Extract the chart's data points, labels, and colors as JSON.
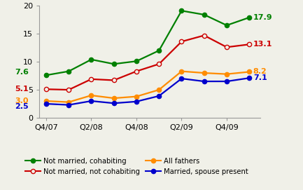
{
  "x_tick_labels": [
    "Q4/07",
    "Q2/08",
    "Q4/08",
    "Q2/09",
    "Q4/09"
  ],
  "x_tick_positions": [
    0,
    2,
    4,
    6,
    8
  ],
  "series": [
    {
      "key": "not_married_cohabiting",
      "values": [
        7.6,
        8.3,
        10.4,
        9.6,
        10.1,
        12.0,
        19.1,
        18.4,
        16.5,
        17.9
      ],
      "color": "#008000",
      "marker_filled": true,
      "label": "Not married, cohabiting",
      "start_label": "7.6",
      "end_label": "17.9"
    },
    {
      "key": "not_married_not_cohabiting",
      "values": [
        5.1,
        5.0,
        6.9,
        6.7,
        8.3,
        9.6,
        13.6,
        14.7,
        12.6,
        13.1
      ],
      "color": "#cc0000",
      "marker_filled": false,
      "label": "Not married, not cohabiting",
      "start_label": "5.1",
      "end_label": "13.1"
    },
    {
      "key": "all_fathers",
      "values": [
        3.0,
        2.8,
        4.0,
        3.5,
        3.8,
        5.0,
        8.3,
        8.0,
        7.8,
        8.2
      ],
      "color": "#ff8c00",
      "marker_filled": true,
      "label": "All fathers",
      "start_label": "3.0",
      "end_label": "8.2"
    },
    {
      "key": "married_spouse_present",
      "values": [
        2.5,
        2.3,
        3.0,
        2.6,
        2.9,
        3.9,
        7.0,
        6.5,
        6.5,
        7.1
      ],
      "color": "#0000cc",
      "marker_filled": true,
      "label": "Married, spouse present",
      "start_label": "2.5",
      "end_label": "7.1"
    }
  ],
  "ylim": [
    0,
    20
  ],
  "yticks": [
    0,
    5,
    10,
    15,
    20
  ],
  "background_color": "#f0f0e8",
  "linewidth": 1.6,
  "markersize": 4.5
}
